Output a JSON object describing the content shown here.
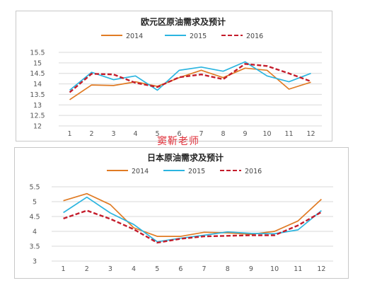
{
  "chart_data": [
    {
      "type": "line",
      "title": "欧元区原油需求及预计",
      "xlabel": "",
      "ylabel": "",
      "categories": [
        "1",
        "2",
        "3",
        "4",
        "5",
        "6",
        "7",
        "8",
        "9",
        "10",
        "11",
        "12"
      ],
      "ylim": [
        12,
        15.5
      ],
      "yticks": [
        "12",
        "12.5",
        "13",
        "13.5",
        "14",
        "14.5",
        "15",
        "15.5"
      ],
      "grid": true,
      "legend": "top",
      "series": [
        {
          "name": "2014",
          "color": "#e07b24",
          "dash": false,
          "values": [
            13.25,
            13.95,
            13.92,
            14.1,
            13.88,
            14.3,
            14.65,
            14.3,
            14.75,
            14.65,
            13.75,
            14.08
          ]
        },
        {
          "name": "2015",
          "color": "#2bb5e0",
          "dash": false,
          "values": [
            13.7,
            14.55,
            14.2,
            14.38,
            13.7,
            14.65,
            14.8,
            14.6,
            15.05,
            14.38,
            14.1,
            14.5
          ]
        },
        {
          "name": "2016",
          "color": "#c41c2b",
          "dash": true,
          "values": [
            13.6,
            14.48,
            14.45,
            14.05,
            13.85,
            14.32,
            14.45,
            14.22,
            14.95,
            14.85,
            14.5,
            14.12
          ]
        }
      ]
    },
    {
      "type": "line",
      "title": "日本原油需求及预计",
      "xlabel": "",
      "ylabel": "",
      "categories": [
        "1",
        "2",
        "3",
        "4",
        "5",
        "6",
        "7",
        "8",
        "9",
        "10",
        "11",
        "12"
      ],
      "ylim": [
        3,
        5.5
      ],
      "yticks": [
        "3",
        "3.5",
        "4",
        "4.5",
        "5",
        "5.5"
      ],
      "grid": true,
      "legend": "top",
      "series": [
        {
          "name": "2014",
          "color": "#e07b24",
          "dash": false,
          "values": [
            5.03,
            5.27,
            4.9,
            4.12,
            3.83,
            3.83,
            3.97,
            3.95,
            3.9,
            4.0,
            4.35,
            5.08
          ]
        },
        {
          "name": "2015",
          "color": "#2bb5e0",
          "dash": false,
          "values": [
            4.63,
            5.15,
            4.62,
            4.23,
            3.65,
            3.77,
            3.87,
            3.98,
            3.93,
            3.92,
            4.05,
            4.7
          ]
        },
        {
          "name": "2016",
          "color": "#c41c2b",
          "dash": true,
          "values": [
            4.43,
            4.7,
            4.42,
            4.07,
            3.62,
            3.75,
            3.83,
            3.85,
            3.87,
            3.87,
            4.2,
            4.65
          ]
        }
      ]
    }
  ],
  "watermark": "窦靳老师"
}
